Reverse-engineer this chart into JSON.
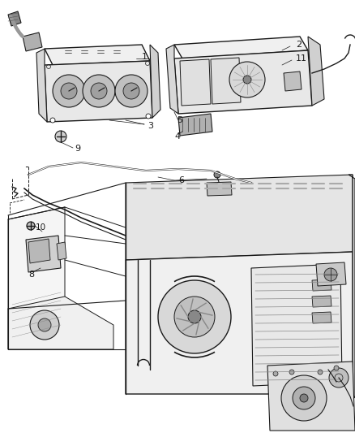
{
  "bg_color": "#ffffff",
  "line_color": "#1a1a1a",
  "gray_color": "#888888",
  "light_gray": "#cccccc",
  "fig_width": 4.38,
  "fig_height": 5.33,
  "dpi": 100
}
